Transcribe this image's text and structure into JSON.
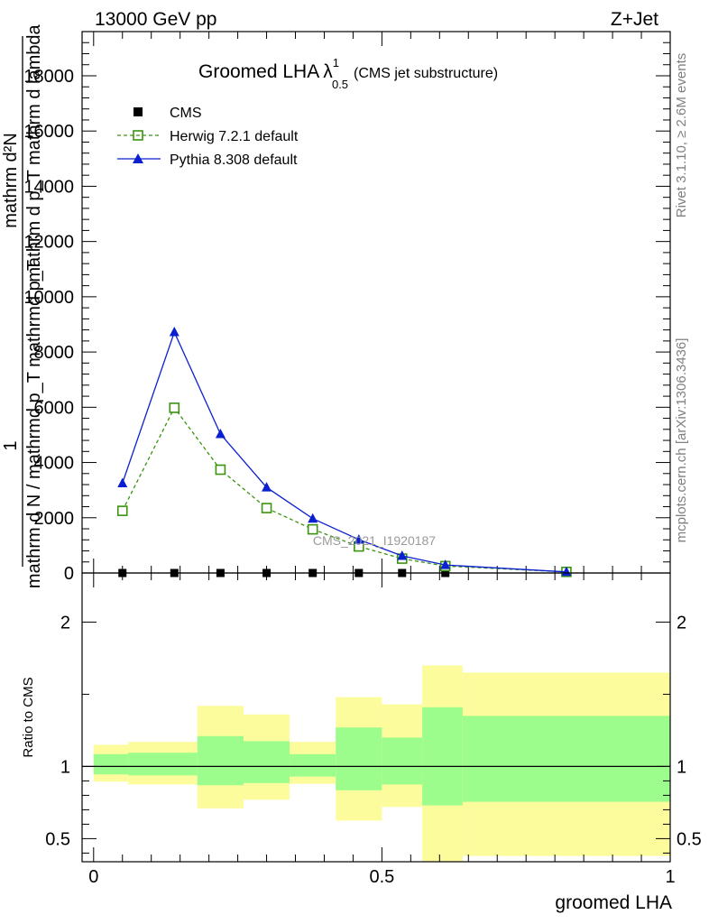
{
  "header": {
    "left": "13000 GeV pp",
    "right": "Z+Jet"
  },
  "side_labels": {
    "rivet": "Rivet 3.1.10, ≥ 2.6M events",
    "mcplots": "mcplots.cern.ch [arXiv:1306.3436]"
  },
  "chart_data": [
    {
      "type": "line",
      "title_main": "Groomed LHA",
      "title_symbol": "λ",
      "title_sup": "1",
      "title_sub": "0.5",
      "title_paren": "(CMS jet substructure)",
      "ylabel_top": "mathrm d²N",
      "ylabel_top2": "mathrm d p_T mathrm d lambda",
      "ylabel_one": "1",
      "ylabel_bottom": "mathrm d N / mathrmd p_T mathrmd p_T",
      "watermark": "CMS_2021_I1920187",
      "ylim": [
        0,
        19600
      ],
      "xlim": [
        -0.02,
        1.0
      ],
      "yticks": [
        {
          "v": 0,
          "label": "0"
        },
        {
          "v": 2000,
          "label": "2000"
        },
        {
          "v": 4000,
          "label": "4000"
        },
        {
          "v": 6000,
          "label": "6000"
        },
        {
          "v": 8000,
          "label": "8000"
        },
        {
          "v": 10000,
          "label": "10000"
        },
        {
          "v": 12000,
          "label": "12000"
        },
        {
          "v": 14000,
          "label": "14000"
        },
        {
          "v": 16000,
          "label": "16000"
        },
        {
          "v": 18000,
          "label": "18000"
        }
      ],
      "legend_position": "top-left",
      "series": [
        {
          "name": "CMS",
          "color": "#000000",
          "marker": "square-filled",
          "x": [
            0.05,
            0.14,
            0.22,
            0.3,
            0.38,
            0.46,
            0.535,
            0.61,
            0.82
          ],
          "y": [
            0,
            0,
            0,
            0,
            0,
            0,
            0,
            0,
            0
          ]
        },
        {
          "name": "Herwig 7.2.1 default",
          "color": "#3a9410",
          "marker": "square-open",
          "dashed": true,
          "x": [
            0.05,
            0.14,
            0.22,
            0.3,
            0.38,
            0.46,
            0.535,
            0.61,
            0.82
          ],
          "y": [
            2250,
            5980,
            3740,
            2350,
            1580,
            960,
            520,
            250,
            40
          ]
        },
        {
          "name": "Pythia 8.308 default",
          "color": "#0a20d0",
          "marker": "triangle-filled",
          "dashed": false,
          "x": [
            0.05,
            0.14,
            0.22,
            0.3,
            0.38,
            0.46,
            0.535,
            0.61,
            0.82
          ],
          "y": [
            3250,
            8720,
            5030,
            3100,
            1970,
            1210,
            620,
            290,
            40
          ]
        }
      ]
    },
    {
      "type": "area",
      "ylabel": "Ratio to CMS",
      "xlabel": "groomed LHA",
      "xlim": [
        -0.02,
        1.0
      ],
      "ylim": [
        0.34,
        2.34
      ],
      "yticks": [
        {
          "v": 0.5,
          "label": "0.5"
        },
        {
          "v": 1,
          "label": "1"
        },
        {
          "v": 2,
          "label": "2"
        }
      ],
      "xticks": [
        {
          "v": 0,
          "label": "0"
        },
        {
          "v": 0.5,
          "label": "0.5"
        },
        {
          "v": 1,
          "label": "1"
        }
      ],
      "colors": {
        "inner": "#9cfc8c",
        "outer": "#fcfc9c"
      },
      "bands": [
        {
          "x0": 0.0,
          "x1": 0.06,
          "y_lo": 0.895,
          "y_hi": 1.15,
          "g_lo": 0.945,
          "g_hi": 1.085
        },
        {
          "x0": 0.06,
          "x1": 0.18,
          "y_lo": 0.875,
          "y_hi": 1.17,
          "g_lo": 0.938,
          "g_hi": 1.095
        },
        {
          "x0": 0.18,
          "x1": 0.26,
          "y_lo": 0.71,
          "y_hi": 1.42,
          "g_lo": 0.87,
          "g_hi": 1.21
        },
        {
          "x0": 0.26,
          "x1": 0.34,
          "y_lo": 0.77,
          "y_hi": 1.36,
          "g_lo": 0.885,
          "g_hi": 1.175
        },
        {
          "x0": 0.34,
          "x1": 0.42,
          "y_lo": 0.88,
          "y_hi": 1.17,
          "g_lo": 0.93,
          "g_hi": 1.085
        },
        {
          "x0": 0.42,
          "x1": 0.5,
          "y_lo": 0.625,
          "y_hi": 1.48,
          "g_lo": 0.835,
          "g_hi": 1.27
        },
        {
          "x0": 0.5,
          "x1": 0.57,
          "y_lo": 0.72,
          "y_hi": 1.43,
          "g_lo": 0.875,
          "g_hi": 1.2
        },
        {
          "x0": 0.57,
          "x1": 0.64,
          "y_lo": 0.29,
          "y_hi": 1.7,
          "g_lo": 0.73,
          "g_hi": 1.41
        },
        {
          "x0": 0.64,
          "x1": 1.0,
          "y_lo": 0.38,
          "y_hi": 1.65,
          "g_lo": 0.755,
          "g_hi": 1.35
        }
      ]
    }
  ]
}
